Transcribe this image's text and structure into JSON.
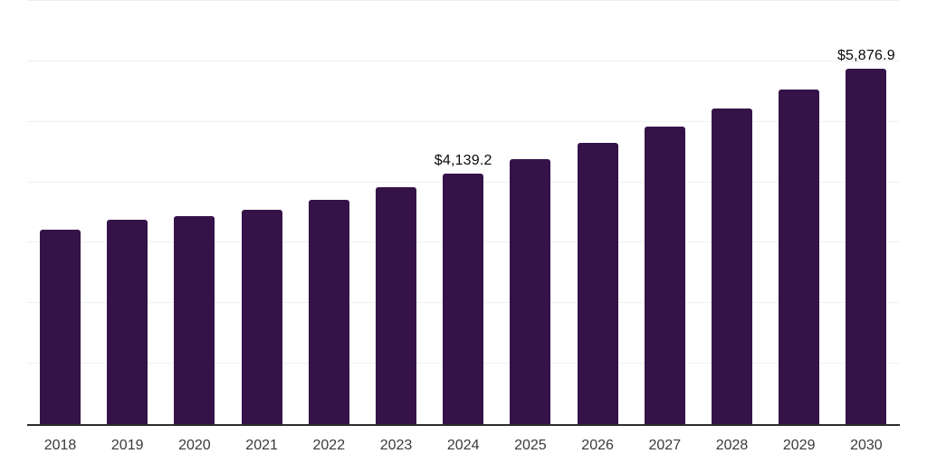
{
  "chart_data": {
    "type": "bar",
    "title": "",
    "xlabel": "",
    "ylabel": "",
    "categories": [
      "2018",
      "2019",
      "2020",
      "2021",
      "2022",
      "2023",
      "2024",
      "2025",
      "2026",
      "2027",
      "2028",
      "2029",
      "2030"
    ],
    "values": [
      3210,
      3385,
      3440,
      3540,
      3715,
      3915,
      4139.2,
      4385,
      4650,
      4925,
      5220,
      5540,
      5876.9
    ],
    "labeled_points": [
      {
        "category": "2024",
        "label": "$4,139.2"
      },
      {
        "category": "2030",
        "label": "$5,876.9"
      }
    ],
    "value_prefix": "$",
    "ylim": [
      0,
      7000
    ],
    "grid": true,
    "grid_interval": 1000,
    "legend": "none",
    "colors": {
      "bar": "#351349",
      "axis_line": "#2b2b2b",
      "gridline": "#f0f0f0",
      "data_label": "#0a0a0a",
      "tick_label": "#3a3a3a",
      "background": "#ffffff"
    }
  }
}
